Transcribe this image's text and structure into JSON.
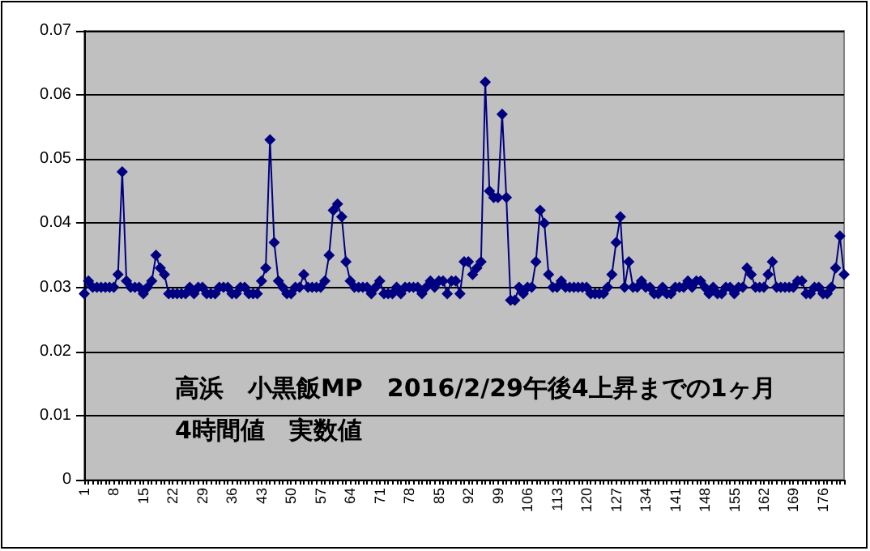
{
  "chart_data": {
    "type": "line",
    "categories": [
      "1",
      null,
      null,
      null,
      null,
      null,
      null,
      "8",
      null,
      null,
      null,
      null,
      null,
      null,
      "15",
      null,
      null,
      null,
      null,
      null,
      null,
      "22",
      null,
      null,
      null,
      null,
      null,
      null,
      "29",
      null,
      null,
      null,
      null,
      null,
      null,
      "36",
      null,
      null,
      null,
      null,
      null,
      null,
      "43",
      null,
      null,
      null,
      null,
      null,
      null,
      "50",
      null,
      null,
      null,
      null,
      null,
      null,
      "57",
      null,
      null,
      null,
      null,
      null,
      null,
      "64",
      null,
      null,
      null,
      null,
      null,
      null,
      "71",
      null,
      null,
      null,
      null,
      null,
      null,
      "78",
      null,
      null,
      null,
      null,
      null,
      null,
      "85",
      null,
      null,
      null,
      null,
      null,
      null,
      "92",
      null,
      null,
      null,
      null,
      null,
      null,
      "99",
      null,
      null,
      null,
      null,
      null,
      null,
      "106",
      null,
      null,
      null,
      null,
      null,
      null,
      "113",
      null,
      null,
      null,
      null,
      null,
      null,
      "120",
      null,
      null,
      null,
      null,
      null,
      null,
      "127",
      null,
      null,
      null,
      null,
      null,
      null,
      "134",
      null,
      null,
      null,
      null,
      null,
      null,
      "141",
      null,
      null,
      null,
      null,
      null,
      null,
      "148",
      null,
      null,
      null,
      null,
      null,
      null,
      "155",
      null,
      null,
      null,
      null,
      null,
      null,
      "162",
      null,
      null,
      null,
      null,
      null,
      null,
      "169",
      null,
      null,
      null,
      null,
      null,
      null,
      "176",
      null,
      null,
      null,
      null,
      null
    ],
    "series": [
      {
        "color": "#000080",
        "values": [
          0.029,
          0.031,
          0.03,
          0.03,
          0.03,
          0.03,
          0.03,
          0.03,
          0.032,
          0.048,
          0.031,
          0.03,
          0.03,
          0.03,
          0.029,
          0.03,
          0.031,
          0.035,
          0.033,
          0.032,
          0.029,
          0.029,
          0.029,
          0.029,
          0.029,
          0.03,
          0.029,
          0.03,
          0.03,
          0.029,
          0.029,
          0.029,
          0.03,
          0.03,
          0.03,
          0.029,
          0.029,
          0.03,
          0.03,
          0.029,
          0.029,
          0.029,
          0.031,
          0.033,
          0.053,
          0.037,
          0.031,
          0.03,
          0.029,
          0.029,
          0.03,
          0.03,
          0.032,
          0.03,
          0.03,
          0.03,
          0.03,
          0.031,
          0.035,
          0.042,
          0.043,
          0.041,
          0.034,
          0.031,
          0.03,
          0.03,
          0.03,
          0.03,
          0.029,
          0.03,
          0.031,
          0.029,
          0.029,
          0.029,
          0.03,
          0.029,
          0.03,
          0.03,
          0.03,
          0.03,
          0.029,
          0.03,
          0.031,
          0.03,
          0.031,
          0.031,
          0.029,
          0.031,
          0.031,
          0.029,
          0.034,
          0.034,
          0.032,
          0.033,
          0.034,
          0.062,
          0.045,
          0.044,
          0.044,
          0.057,
          0.044,
          0.028,
          0.028,
          0.03,
          0.029,
          0.03,
          0.03,
          0.034,
          0.042,
          0.04,
          0.032,
          0.03,
          0.03,
          0.031,
          0.03,
          0.03,
          0.03,
          0.03,
          0.03,
          0.03,
          0.029,
          0.029,
          0.029,
          0.029,
          0.03,
          0.032,
          0.037,
          0.041,
          0.03,
          0.034,
          0.03,
          0.03,
          0.031,
          0.03,
          0.03,
          0.029,
          0.029,
          0.03,
          0.029,
          0.029,
          0.03,
          0.03,
          0.03,
          0.031,
          0.03,
          0.031,
          0.031,
          0.03,
          0.029,
          0.03,
          0.029,
          0.029,
          0.03,
          0.03,
          0.029,
          0.03,
          0.03,
          0.033,
          0.032,
          0.03,
          0.03,
          0.03,
          0.032,
          0.034,
          0.03,
          0.03,
          0.03,
          0.03,
          0.03,
          0.031,
          0.031,
          0.029,
          0.029,
          0.03,
          0.03,
          0.029,
          0.029,
          0.03,
          0.033,
          0.038,
          0.032
        ]
      }
    ],
    "ylim": [
      0,
      0.07
    ],
    "yticks": [
      0,
      0.01,
      0.02,
      0.03,
      0.04,
      0.05,
      0.06,
      0.07
    ],
    "grid": "y",
    "marker": "diamond",
    "line_style": "solid",
    "annotations": [
      "高浜　小黒飯MP　2016/2/29午後4上昇までの1ヶ月",
      "4時間値　実数値"
    ]
  }
}
